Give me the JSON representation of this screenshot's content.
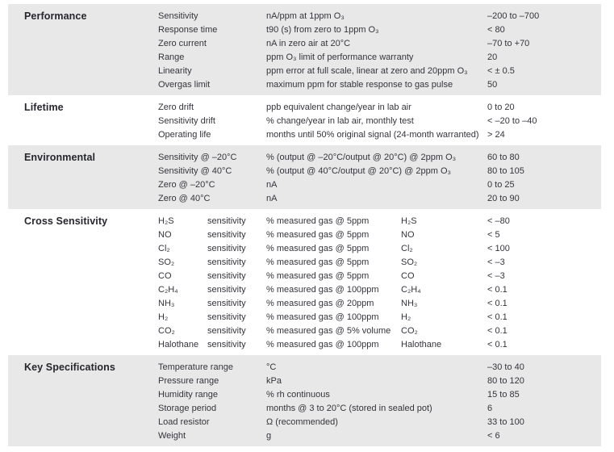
{
  "colors": {
    "page_background": "#ffffff",
    "shaded_band": "#e8e8e8",
    "body_text": "#34343c",
    "heading_text": "#26262e"
  },
  "sections": [
    {
      "title": "Performance",
      "shaded": true,
      "cell_names": [
        "spec-param",
        "spec-description",
        "spec-value"
      ],
      "rows": [
        [
          "Sensitivity",
          "nA/ppm at 1ppm O₃",
          "–200 to –700"
        ],
        [
          "Response time",
          "t90 (s) from zero to 1ppm O₃",
          "< 80"
        ],
        [
          "Zero current",
          "nA in zero air at 20°C",
          "–70 to +70"
        ],
        [
          "Range",
          "ppm O₃ limit of performance warranty",
          "20"
        ],
        [
          "Linearity",
          "ppm error at full scale, linear at zero and 20ppm O₃",
          "< ± 0.5"
        ],
        [
          "Overgas limit",
          "maximum ppm for stable response to gas pulse",
          "50"
        ]
      ]
    },
    {
      "title": "Lifetime",
      "shaded": false,
      "cell_names": [
        "spec-param",
        "spec-description",
        "spec-value"
      ],
      "rows": [
        [
          "Zero drift",
          "ppb equivalent change/year in lab air",
          "0 to 20"
        ],
        [
          "Sensitivity drift",
          "% change/year in lab air, monthly test",
          "< –20 to –40"
        ],
        [
          "Operating life",
          "months until 50% original signal (24-month warranted)",
          "> 24"
        ]
      ]
    },
    {
      "title": "Environmental",
      "shaded": true,
      "cell_names": [
        "spec-param",
        "spec-description",
        "spec-value"
      ],
      "rows": [
        [
          "Sensitivity @ –20°C",
          "% (output @ –20°C/output @ 20°C) @ 2ppm O₃",
          "60 to 80"
        ],
        [
          "Sensitivity @ 40°C",
          "% (output @ 40°C/output @ 20°C) @ 2ppm O₃",
          "80 to 105"
        ],
        [
          "Zero @ –20°C",
          "nA",
          "0 to 25"
        ],
        [
          "Zero @ 40°C",
          "nA",
          "20 to 90"
        ]
      ]
    },
    {
      "title": "Cross Sensitivity",
      "shaded": false,
      "cell_names": [
        "gas-formula",
        "sensitivity-label",
        "measurement-condition",
        "gas-formula-repeat",
        "spec-value"
      ],
      "rows": [
        [
          "H₂S",
          "sensitivity",
          "% measured gas @ 5ppm",
          "H₂S",
          "< –80"
        ],
        [
          "NO",
          "sensitivity",
          "% measured gas @ 5ppm",
          "NO",
          "< 5"
        ],
        [
          "Cl₂",
          "sensitivity",
          "% measured gas @ 5ppm",
          "Cl₂",
          "< 100"
        ],
        [
          "SO₂",
          "sensitivity",
          "% measured gas @ 5ppm",
          "SO₂",
          "< –3"
        ],
        [
          "CO",
          "sensitivity",
          "% measured gas @ 5ppm",
          "CO",
          "< –3"
        ],
        [
          "C₂H₄",
          "sensitivity",
          "% measured gas @ 100ppm",
          "C₂H₄",
          "< 0.1"
        ],
        [
          "NH₃",
          "sensitivity",
          "% measured gas @ 20ppm",
          "NH₃",
          "< 0.1"
        ],
        [
          "H₂",
          "sensitivity",
          "% measured gas @ 100ppm",
          "H₂",
          "< 0.1"
        ],
        [
          "CO₂",
          "sensitivity",
          "% measured gas @ 5% volume",
          "CO₂",
          "< 0.1"
        ],
        [
          "Halothane",
          "sensitivity",
          "% measured gas @ 100ppm",
          "Halothane",
          "< 0.1"
        ]
      ]
    },
    {
      "title": "Key Specifications",
      "shaded": true,
      "cell_names": [
        "spec-param",
        "spec-description",
        "spec-value"
      ],
      "rows": [
        [
          "Temperature range",
          "°C",
          "–30 to 40"
        ],
        [
          "Pressure range",
          "kPa",
          "80 to 120"
        ],
        [
          "Humidity range",
          "% rh continuous",
          "15 to 85"
        ],
        [
          "Storage period",
          "months @ 3 to 20°C (stored in sealed pot)",
          "6"
        ],
        [
          "Load resistor",
          "Ω (recommended)",
          "33 to 100"
        ],
        [
          "Weight",
          "g",
          "< 6"
        ]
      ]
    }
  ]
}
